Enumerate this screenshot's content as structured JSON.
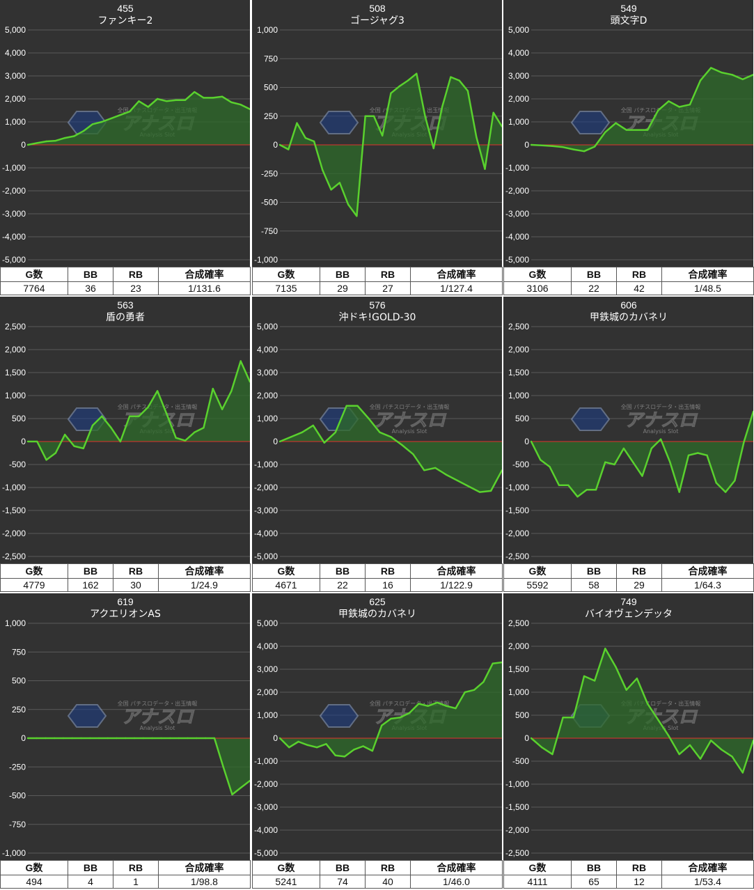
{
  "colors": {
    "background": "#323232",
    "grid": "#5a5a5a",
    "zero_line": "#e0322d",
    "line": "#5ad12e",
    "fill": "#2d6b2a",
    "text": "#ffffff"
  },
  "table_headers": {
    "games": "G数",
    "bb": "BB",
    "rb": "RB",
    "prob": "合成確率"
  },
  "watermark": {
    "brand": "アナスロ",
    "tagline": "全国 パチスロデータ・出玉情報",
    "sub": "Analysis Slot"
  },
  "panels": [
    {
      "number": "455",
      "name": "ファンキー2",
      "games": "7764",
      "bb": "36",
      "rb": "23",
      "prob": "1/131.6"
    },
    {
      "number": "508",
      "name": "ゴージャグ3",
      "games": "7135",
      "bb": "29",
      "rb": "27",
      "prob": "1/127.4"
    },
    {
      "number": "549",
      "name": "頭文字D",
      "games": "3106",
      "bb": "22",
      "rb": "42",
      "prob": "1/48.5"
    },
    {
      "number": "563",
      "name": "盾の勇者",
      "games": "4779",
      "bb": "162",
      "rb": "30",
      "prob": "1/24.9"
    },
    {
      "number": "576",
      "name": "沖ドキ!GOLD-30",
      "games": "4671",
      "bb": "22",
      "rb": "16",
      "prob": "1/122.9"
    },
    {
      "number": "606",
      "name": "甲鉄城のカバネリ",
      "games": "5592",
      "bb": "58",
      "rb": "29",
      "prob": "1/64.3"
    },
    {
      "number": "619",
      "name": "アクエリオンAS",
      "games": "494",
      "bb": "4",
      "rb": "1",
      "prob": "1/98.8"
    },
    {
      "number": "625",
      "name": "甲鉄城のカバネリ",
      "games": "5241",
      "bb": "74",
      "rb": "40",
      "prob": "1/46.0"
    },
    {
      "number": "749",
      "name": "バイオヴェンデッタ",
      "games": "4111",
      "bb": "65",
      "rb": "12",
      "prob": "1/53.4"
    }
  ],
  "chart_data": [
    {
      "type": "area",
      "title": "455 ファンキー2",
      "ylim": [
        -5000,
        5000
      ],
      "yticks": [
        "5,000",
        "4,000",
        "3,000",
        "2,000",
        "1,000",
        "0",
        "-1,000",
        "-2,000",
        "-3,000",
        "-4,000",
        "-5,000"
      ],
      "values": [
        0,
        80,
        150,
        180,
        300,
        380,
        600,
        900,
        1000,
        1150,
        1300,
        1450,
        1900,
        1650,
        2000,
        1900,
        1950,
        1950,
        2300,
        2050,
        2050,
        2100,
        1850,
        1750,
        1550
      ]
    },
    {
      "type": "area",
      "title": "508 ゴージャグ3",
      "ylim": [
        -1000,
        1000
      ],
      "yticks": [
        "1,000",
        "750",
        "500",
        "250",
        "0",
        "-250",
        "-500",
        "-750",
        "-1,000"
      ],
      "values": [
        0,
        -40,
        190,
        60,
        30,
        -220,
        -390,
        -330,
        -520,
        -620,
        250,
        250,
        80,
        450,
        510,
        560,
        620,
        250,
        -30,
        330,
        590,
        560,
        470,
        70,
        -210,
        280,
        160
      ]
    },
    {
      "type": "area",
      "title": "549 頭文字D",
      "ylim": [
        -5000,
        5000
      ],
      "yticks": [
        "5,000",
        "4,000",
        "3,000",
        "2,000",
        "1,000",
        "0",
        "-1,000",
        "-2,000",
        "-3,000",
        "-4,000",
        "-5,000"
      ],
      "values": [
        0,
        -20,
        -50,
        -100,
        -200,
        -280,
        -80,
        550,
        950,
        650,
        650,
        650,
        1500,
        1900,
        1650,
        1750,
        2800,
        3350,
        3150,
        3050,
        2850,
        3050
      ]
    },
    {
      "type": "area",
      "title": "563 盾の勇者",
      "ylim": [
        -2500,
        2500
      ],
      "yticks": [
        "2,500",
        "2,000",
        "1,500",
        "1,000",
        "500",
        "0",
        "-500",
        "-1,000",
        "-1,500",
        "-2,000",
        "-2,500"
      ],
      "values": [
        0,
        0,
        -400,
        -250,
        150,
        -100,
        -150,
        350,
        550,
        300,
        0,
        550,
        550,
        750,
        1100,
        600,
        80,
        20,
        200,
        300,
        1150,
        700,
        1100,
        1750,
        1300
      ]
    },
    {
      "type": "area",
      "title": "576 沖ドキ!GOLD-30",
      "ylim": [
        -5000,
        5000
      ],
      "yticks": [
        "5,000",
        "4,000",
        "3,000",
        "2,000",
        "1,000",
        "0",
        "-1,000",
        "-2,000",
        "-3,000",
        "-4,000",
        "-5,000"
      ],
      "values": [
        0,
        200,
        400,
        700,
        -50,
        400,
        1550,
        1550,
        1000,
        400,
        200,
        -150,
        -550,
        -1250,
        -1150,
        -1450,
        -1700,
        -1950,
        -2200,
        -2150,
        -1250
      ]
    },
    {
      "type": "area",
      "title": "606 甲鉄城のカバネリ",
      "ylim": [
        -2500,
        2500
      ],
      "yticks": [
        "2,500",
        "2,000",
        "1,500",
        "1,000",
        "500",
        "0",
        "-500",
        "-1,000",
        "-1,500",
        "-2,000",
        "-2,500"
      ],
      "values": [
        0,
        -400,
        -550,
        -950,
        -950,
        -1200,
        -1050,
        -1050,
        -450,
        -500,
        -150,
        -450,
        -750,
        -150,
        50,
        -450,
        -1100,
        -300,
        -250,
        -300,
        -900,
        -1100,
        -850,
        0,
        650
      ]
    },
    {
      "type": "area",
      "title": "619 アクエリオンAS",
      "ylim": [
        -1000,
        1000
      ],
      "yticks": [
        "1,000",
        "750",
        "500",
        "250",
        "0",
        "-250",
        "-500",
        "-750",
        "-1,000"
      ],
      "values": [
        0,
        0,
        0,
        0,
        0,
        0,
        0,
        0,
        0,
        0,
        0,
        0,
        0,
        0,
        0,
        0,
        0,
        0,
        0,
        0,
        0,
        0,
        -250,
        -490,
        -430,
        -370
      ]
    },
    {
      "type": "area",
      "title": "625 甲鉄城のカバネリ",
      "ylim": [
        -5000,
        5000
      ],
      "yticks": [
        "5,000",
        "4,000",
        "3,000",
        "2,000",
        "1,000",
        "0",
        "-1,000",
        "-2,000",
        "-3,000",
        "-4,000",
        "-5,000"
      ],
      "values": [
        0,
        -400,
        -150,
        -300,
        -400,
        -250,
        -750,
        -800,
        -500,
        -350,
        -550,
        550,
        850,
        900,
        1100,
        1500,
        1400,
        1550,
        1400,
        1300,
        2000,
        2100,
        2450,
        3250,
        3300
      ]
    },
    {
      "type": "area",
      "title": "749 バイオヴェンデッタ",
      "ylim": [
        -2500,
        2500
      ],
      "yticks": [
        "2,500",
        "2,000",
        "1,500",
        "1,000",
        "500",
        "0",
        "-500",
        "-1,000",
        "-1,500",
        "-2,000",
        "-2,500"
      ],
      "values": [
        0,
        -200,
        -350,
        450,
        450,
        1350,
        1250,
        1950,
        1550,
        1050,
        1300,
        750,
        400,
        50,
        -350,
        -150,
        -450,
        -50,
        -250,
        -400,
        -750,
        -50
      ]
    }
  ]
}
